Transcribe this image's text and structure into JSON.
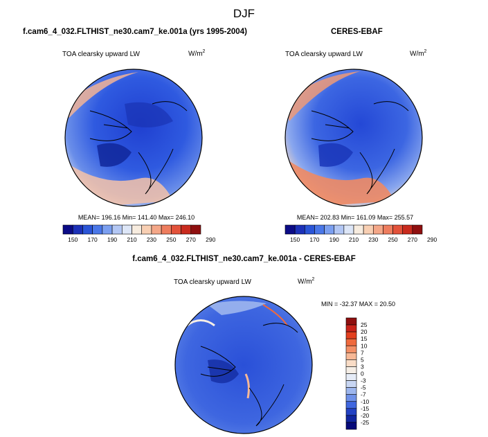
{
  "page": {
    "season": "DJF",
    "left_title": "f.cam6_4_032.FLTHIST_ne30.cam7_ke.001a (yrs 1995-2004)",
    "right_title": "CERES-EBAF",
    "diff_title": "f.cam6_4_032.FLTHIST_ne30.cam7_ke.001a - CERES-EBAF"
  },
  "panels": [
    {
      "id": "model",
      "variable": "TOA clearsky upward LW",
      "units_base": "W/m",
      "units_exp": "2",
      "stats": "MEAN= 196.16  Min= 141.40  Max= 246.10"
    },
    {
      "id": "obs",
      "variable": "TOA clearsky upward LW",
      "units_base": "W/m",
      "units_exp": "2",
      "stats": "MEAN= 202.83  Min= 161.09  Max= 255.57"
    },
    {
      "id": "diff",
      "variable": "TOA clearsky upward LW",
      "units_base": "W/m",
      "units_exp": "2",
      "stats": "MIN = -32.37 MAX =  20.50"
    }
  ],
  "colorbar_main": {
    "labels": [
      "150",
      "170",
      "190",
      "210",
      "230",
      "250",
      "270",
      "290"
    ],
    "colors": [
      "#0b0b86",
      "#1c31b8",
      "#2b55d7",
      "#4a77e8",
      "#7b9ff0",
      "#b3c7f4",
      "#dde6f7",
      "#f7ecdf",
      "#f8cfb3",
      "#f4a788",
      "#ee7d5e",
      "#e3523a",
      "#c92b1e",
      "#8f0f0f"
    ]
  },
  "colorbar_diff": {
    "labels": [
      "25",
      "20",
      "15",
      "10",
      "7",
      "5",
      "3",
      "0",
      "-3",
      "-5",
      "-7",
      "-10",
      "-15",
      "-20",
      "-25"
    ],
    "colors": [
      "#8f0f0f",
      "#c9231a",
      "#e3401f",
      "#ef6a3d",
      "#f38f66",
      "#f7b896",
      "#f9dcc6",
      "#f5eee6",
      "#e6ecf7",
      "#c8d6f3",
      "#9db6ee",
      "#6f91e8",
      "#4067df",
      "#2342c4",
      "#1126a0",
      "#060a7a"
    ]
  }
}
